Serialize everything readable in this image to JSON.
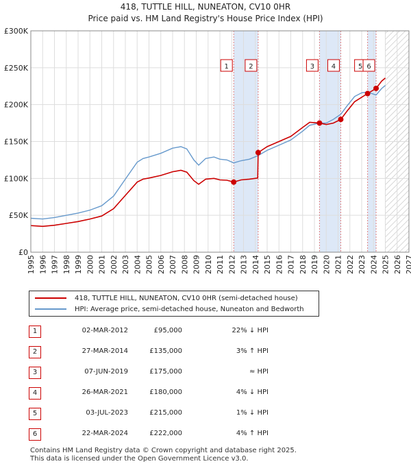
{
  "title_line1": "418, TUTTLE HILL, NUNEATON, CV10 0HR",
  "title_line2": "Price paid vs. HM Land Registry's House Price Index (HPI)",
  "legend": {
    "red_label": "418, TUTTLE HILL, NUNEATON, CV10 0HR (semi-detached house)",
    "blue_label": "HPI: Average price, semi-detached house, Nuneaton and Bedworth"
  },
  "colors": {
    "red": "#cc0000",
    "blue": "#6699cc",
    "band": "#dde8f7",
    "grid": "#dddddd",
    "vline": "#e08080"
  },
  "sales": [
    {
      "num": "1",
      "date": "02-MAR-2012",
      "price": "£95,000",
      "hpi": "22% ↓ HPI"
    },
    {
      "num": "2",
      "date": "27-MAR-2014",
      "price": "£135,000",
      "hpi": "3% ↑ HPI"
    },
    {
      "num": "3",
      "date": "07-JUN-2019",
      "price": "£175,000",
      "hpi": "≈ HPI"
    },
    {
      "num": "4",
      "date": "26-MAR-2021",
      "price": "£180,000",
      "hpi": "4% ↓ HPI"
    },
    {
      "num": "5",
      "date": "03-JUL-2023",
      "price": "£215,000",
      "hpi": "1% ↓ HPI"
    },
    {
      "num": "6",
      "date": "22-MAR-2024",
      "price": "£222,000",
      "hpi": "4% ↑ HPI"
    }
  ],
  "footer_line1": "Contains HM Land Registry data © Crown copyright and database right 2025.",
  "footer_line2": "This data is licensed under the Open Government Licence v3.0.",
  "chart_data": {
    "type": "line",
    "title": "418, TUTTLE HILL, NUNEATON, CV10 0HR — Price paid vs. HM Land Registry's House Price Index (HPI)",
    "xlim": [
      1995,
      2027
    ],
    "ylim": [
      0,
      300000
    ],
    "y_ticks": [
      0,
      50000,
      100000,
      150000,
      200000,
      250000,
      300000
    ],
    "y_tick_labels": [
      "£0",
      "£50K",
      "£100K",
      "£150K",
      "£200K",
      "£250K",
      "£300K"
    ],
    "x_ticks": [
      1995,
      1996,
      1997,
      1998,
      1999,
      2000,
      2001,
      2002,
      2003,
      2004,
      2005,
      2006,
      2007,
      2008,
      2009,
      2010,
      2011,
      2012,
      2013,
      2014,
      2015,
      2016,
      2017,
      2018,
      2019,
      2020,
      2021,
      2022,
      2023,
      2024,
      2025,
      2026,
      2027
    ],
    "forecast_from": 2025.0,
    "bands": [
      [
        2012.17,
        2014.24
      ],
      [
        2019.43,
        2021.23
      ],
      [
        2023.5,
        2024.22
      ]
    ],
    "markers": [
      {
        "label": "1",
        "x": 2012.17,
        "y": 95000
      },
      {
        "label": "2",
        "x": 2014.24,
        "y": 135000
      },
      {
        "label": "3",
        "x": 2019.43,
        "y": 175000
      },
      {
        "label": "4",
        "x": 2021.23,
        "y": 180000
      },
      {
        "label": "5",
        "x": 2023.5,
        "y": 215000
      },
      {
        "label": "6",
        "x": 2024.22,
        "y": 222000
      }
    ],
    "series": [
      {
        "name": "HPI: Average price, semi-detached house, Nuneaton and Bedworth",
        "color": "blue",
        "points": [
          [
            1995,
            46000
          ],
          [
            1996,
            45000
          ],
          [
            1997,
            47000
          ],
          [
            1998,
            50000
          ],
          [
            1999,
            53000
          ],
          [
            2000,
            57000
          ],
          [
            2001,
            63000
          ],
          [
            2002,
            76000
          ],
          [
            2003,
            99000
          ],
          [
            2004,
            122000
          ],
          [
            2004.5,
            127000
          ],
          [
            2005,
            129000
          ],
          [
            2006,
            134000
          ],
          [
            2007,
            141000
          ],
          [
            2007.7,
            143000
          ],
          [
            2008.2,
            140000
          ],
          [
            2008.8,
            125000
          ],
          [
            2009.2,
            118000
          ],
          [
            2009.8,
            127000
          ],
          [
            2010.5,
            129000
          ],
          [
            2011,
            126000
          ],
          [
            2011.6,
            125000
          ],
          [
            2012.17,
            121000
          ],
          [
            2012.8,
            124000
          ],
          [
            2013.5,
            126000
          ],
          [
            2014.24,
            131000
          ],
          [
            2015,
            138000
          ],
          [
            2016,
            145000
          ],
          [
            2017,
            152000
          ],
          [
            2018,
            164000
          ],
          [
            2018.6,
            172000
          ],
          [
            2019.43,
            175000
          ],
          [
            2020,
            175000
          ],
          [
            2020.6,
            180000
          ],
          [
            2021.23,
            187000
          ],
          [
            2021.8,
            199000
          ],
          [
            2022.4,
            211000
          ],
          [
            2023,
            216000
          ],
          [
            2023.5,
            217000
          ],
          [
            2024.22,
            213000
          ],
          [
            2024.7,
            222000
          ],
          [
            2025,
            226000
          ]
        ]
      },
      {
        "name": "418, TUTTLE HILL, NUNEATON, CV10 0HR (semi-detached house)",
        "color": "red",
        "points": [
          [
            1995,
            36000
          ],
          [
            1996,
            35000
          ],
          [
            1997,
            36500
          ],
          [
            1998,
            39000
          ],
          [
            1999,
            41500
          ],
          [
            2000,
            45000
          ],
          [
            2001,
            49000
          ],
          [
            2002,
            59000
          ],
          [
            2003,
            77000
          ],
          [
            2004,
            95000
          ],
          [
            2004.5,
            99000
          ],
          [
            2005,
            100500
          ],
          [
            2006,
            104000
          ],
          [
            2007,
            109000
          ],
          [
            2007.7,
            111000
          ],
          [
            2008.2,
            108500
          ],
          [
            2008.8,
            97000
          ],
          [
            2009.2,
            92000
          ],
          [
            2009.8,
            99000
          ],
          [
            2010.5,
            100000
          ],
          [
            2011,
            98000
          ],
          [
            2011.6,
            97500
          ],
          [
            2012.17,
            95000
          ],
          [
            2012.8,
            98000
          ],
          [
            2013.5,
            99000
          ],
          [
            2014.2,
            100500
          ],
          [
            2014.24,
            135000
          ],
          [
            2015,
            143000
          ],
          [
            2016,
            150000
          ],
          [
            2017,
            157000
          ],
          [
            2018,
            169000
          ],
          [
            2018.6,
            176000
          ],
          [
            2019.43,
            175000
          ],
          [
            2020,
            173000
          ],
          [
            2020.6,
            175000
          ],
          [
            2021.23,
            180000
          ],
          [
            2021.8,
            192000
          ],
          [
            2022.4,
            204000
          ],
          [
            2023,
            210000
          ],
          [
            2023.5,
            215000
          ],
          [
            2024.22,
            222000
          ],
          [
            2024.7,
            232000
          ],
          [
            2025,
            236000
          ]
        ]
      }
    ]
  }
}
